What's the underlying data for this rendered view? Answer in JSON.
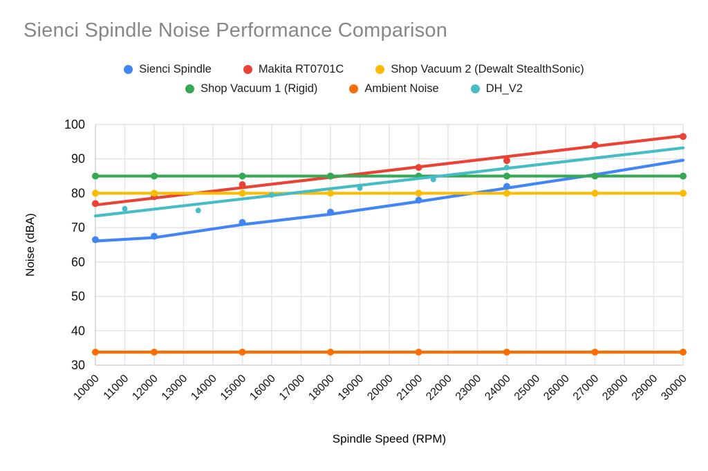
{
  "title": {
    "text": "Sienci Spindle Noise Performance Comparison",
    "color": "#878787"
  },
  "axes": {
    "x_title": "Spindle Speed (RPM)",
    "y_title": "Noise (dBA)"
  },
  "colors": {
    "blue": "#4285F4",
    "red": "#EA4335",
    "yellow": "#FBBC04",
    "green": "#34A853",
    "orange": "#FF6D01",
    "teal": "#46BDC6",
    "grid": "#e2e2e2",
    "axis_line": "#cfcfcf"
  },
  "legend": {
    "rows": [
      [
        0,
        1,
        2
      ],
      [
        3,
        4,
        5
      ]
    ]
  },
  "chart_data": {
    "type": "line",
    "title": "Sienci Spindle Noise Performance Comparison",
    "xlabel": "Spindle Speed (RPM)",
    "ylabel": "Noise (dBA)",
    "xlim": [
      10000,
      30000
    ],
    "ylim": [
      30,
      100
    ],
    "x_ticks": [
      10000,
      11000,
      12000,
      13000,
      14000,
      15000,
      16000,
      17000,
      18000,
      19000,
      20000,
      21000,
      22000,
      23000,
      24000,
      25000,
      26000,
      27000,
      28000,
      29000,
      30000
    ],
    "y_ticks": [
      30,
      40,
      50,
      60,
      70,
      80,
      90,
      100
    ],
    "grid": true,
    "legend_position": "top",
    "series": [
      {
        "name": "Sienci Spindle",
        "color": "#4285F4",
        "marker_radius": 5,
        "points": [
          [
            10000,
            66.5
          ],
          [
            12000,
            67.5
          ],
          [
            15000,
            71.5
          ],
          [
            18000,
            74.5
          ],
          [
            21000,
            78
          ],
          [
            24000,
            82
          ]
        ],
        "trend": [
          [
            10000,
            66.1
          ],
          [
            12000,
            67.1
          ],
          [
            15000,
            70.9
          ],
          [
            18000,
            73.9
          ],
          [
            21000,
            77.6
          ],
          [
            24000,
            81.5
          ],
          [
            27000,
            85.4
          ],
          [
            30000,
            89.6
          ]
        ]
      },
      {
        "name": "Makita RT0701C",
        "color": "#EA4335",
        "marker_radius": 5,
        "points": [
          [
            10000,
            77
          ],
          [
            12000,
            79
          ],
          [
            15000,
            82.5
          ],
          [
            18000,
            85
          ],
          [
            21000,
            87.5
          ],
          [
            24000,
            89.5
          ],
          [
            27000,
            94
          ],
          [
            30000,
            96.5
          ]
        ],
        "trend": [
          [
            10000,
            76.6
          ],
          [
            30000,
            96.7
          ]
        ]
      },
      {
        "name": "Shop Vacuum 2 (Dewalt StealthSonic)",
        "color": "#FBBC04",
        "marker_radius": 5,
        "points": [
          [
            10000,
            80
          ],
          [
            12000,
            80
          ],
          [
            15000,
            80
          ],
          [
            18000,
            80
          ],
          [
            21000,
            80
          ],
          [
            24000,
            80
          ],
          [
            27000,
            80
          ],
          [
            30000,
            80
          ]
        ],
        "trend": [
          [
            10000,
            80
          ],
          [
            30000,
            80
          ]
        ]
      },
      {
        "name": "Shop Vacuum 1 (Rigid)",
        "color": "#34A853",
        "marker_radius": 5,
        "points": [
          [
            10000,
            85
          ],
          [
            12000,
            85
          ],
          [
            15000,
            85
          ],
          [
            18000,
            85
          ],
          [
            21000,
            85
          ],
          [
            24000,
            85
          ],
          [
            27000,
            85
          ],
          [
            30000,
            85
          ]
        ],
        "trend": [
          [
            10000,
            85
          ],
          [
            30000,
            85
          ]
        ]
      },
      {
        "name": "Ambient Noise",
        "color": "#FF6D01",
        "marker_radius": 5,
        "points": [
          [
            10000,
            33.8
          ],
          [
            12000,
            33.8
          ],
          [
            15000,
            33.8
          ],
          [
            18000,
            33.8
          ],
          [
            21000,
            33.8
          ],
          [
            24000,
            33.8
          ],
          [
            27000,
            33.8
          ],
          [
            30000,
            33.8
          ]
        ],
        "trend": [
          [
            10000,
            33.8
          ],
          [
            30000,
            33.8
          ]
        ]
      },
      {
        "name": "DH_V2",
        "color": "#46BDC6",
        "marker_radius": 4,
        "points": [
          [
            11000,
            75.5
          ],
          [
            13500,
            75
          ],
          [
            16000,
            79.5
          ],
          [
            19000,
            81.5
          ],
          [
            21500,
            84
          ],
          [
            24000,
            87.5
          ]
        ],
        "trend": [
          [
            10000,
            73.4
          ],
          [
            30000,
            93.2
          ]
        ]
      }
    ]
  }
}
